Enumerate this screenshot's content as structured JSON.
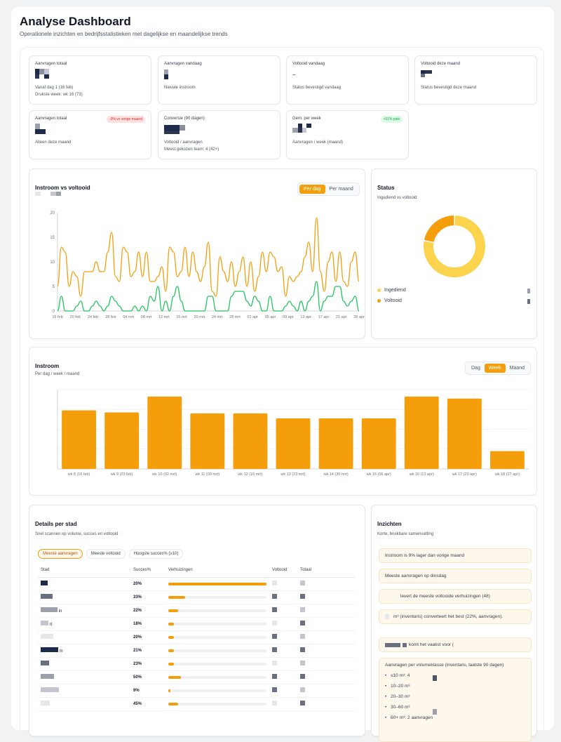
{
  "header": {
    "title": "Analyse Dashboard",
    "subtitle": "Operationele inzichten en bedrijfsstatistieken met dagelijkse en maandelijkse trends"
  },
  "kpis": [
    {
      "label": "Aanvragen totaal",
      "notes": [
        "Vanaf dag 1 (16 feb)",
        "Drukste week: wk 16 (73)"
      ]
    },
    {
      "label": "Aanvragen vandaag",
      "notes": [
        "Nieuwe instroom"
      ]
    },
    {
      "label": "Voltooid vandaag",
      "value": "–",
      "notes": [
        "Status bevestigd vandaag"
      ]
    },
    {
      "label": "Voltooid deze maand",
      "notes": [
        "Status bevestigd deze maand"
      ]
    },
    {
      "label": "Aanvragen totaal",
      "badge": "-9% vs vorige maand",
      "notes": [
        "Alleen deze maand"
      ]
    },
    {
      "label": "Conversie (90 dagen)",
      "notes": [
        "Voltooid / aanvragen",
        "Meest gekozen team: 4 (42×)"
      ]
    },
    {
      "label": "Gem. per week",
      "badge": "+51% piek",
      "notes": [
        "Aanvragen / week (maand)"
      ]
    }
  ],
  "line_section": {
    "title": "Instroom vs voltooid",
    "tabs": [
      "Per dag",
      "Per maand"
    ],
    "active_tab": "Per dag"
  },
  "status_section": {
    "title": "Status",
    "subtitle": "Ingediend vs voltooid",
    "legend": [
      {
        "label": "Ingediend",
        "color": "#fcd34d"
      },
      {
        "label": "Voltooid",
        "color": "#f59e0b"
      }
    ]
  },
  "bar_section": {
    "title": "Instroom",
    "subtitle": "Per dag / week / maand",
    "tabs": [
      "Dag",
      "Week",
      "Maand"
    ],
    "active_tab": "Week"
  },
  "chart_data": [
    {
      "type": "line",
      "ylim": [
        0,
        20
      ],
      "y_ticks": [
        0,
        5,
        10,
        15,
        20
      ],
      "x_tick_labels": [
        "16 feb",
        "20 feb",
        "24 feb",
        "28 feb",
        "04 mrt",
        "08 mrt",
        "12 mrt",
        "16 mrt",
        "20 mrt",
        "24 mrt",
        "28 mrt",
        "01 apr",
        "05 apr",
        "09 apr",
        "13 apr",
        "17 apr",
        "21 apr",
        "28 apr"
      ],
      "series": [
        {
          "color": "#f59e0b",
          "values": [
            5,
            13,
            12,
            5,
            8,
            7,
            3,
            8,
            8,
            8,
            10,
            8,
            8,
            12,
            16,
            7,
            6,
            13,
            12,
            7,
            8,
            12,
            7,
            12,
            6,
            6,
            7,
            9,
            4,
            13,
            12,
            7,
            8,
            13,
            7,
            12,
            8,
            6,
            9,
            14,
            4,
            3,
            11,
            8,
            6,
            10,
            5,
            8,
            11,
            5,
            10,
            4,
            7,
            12,
            8,
            12,
            11,
            8,
            9,
            3,
            7,
            6,
            7,
            8,
            11,
            14,
            8,
            19,
            8,
            4,
            10,
            12,
            6,
            12,
            6,
            5,
            10,
            12,
            6
          ]
        },
        {
          "color": "#22c55e",
          "values": [
            0,
            3,
            0,
            0,
            0,
            1,
            2,
            0,
            0,
            1,
            2,
            1,
            0,
            1,
            3,
            2,
            1,
            0,
            0,
            0,
            1,
            0,
            1,
            0,
            3,
            2,
            5,
            0,
            2,
            0,
            3,
            5,
            2,
            0,
            0,
            0,
            0,
            0,
            0,
            3,
            3,
            0,
            0,
            0,
            0,
            3,
            4,
            4,
            4,
            2,
            1,
            3,
            2,
            0,
            0,
            3,
            0,
            0,
            0,
            1,
            2,
            1,
            0,
            2,
            0,
            2,
            3,
            6,
            0,
            2,
            3,
            3,
            5,
            5,
            2,
            1,
            2,
            3,
            0
          ]
        }
      ]
    },
    {
      "type": "pie",
      "donut": true,
      "slices": [
        {
          "label": "Ingediend",
          "value": 78,
          "color": "#fcd34d"
        },
        {
          "label": "Voltooid",
          "value": 22,
          "color": "#f59e0b"
        }
      ]
    },
    {
      "type": "bar",
      "categories": [
        "wk 8 (16 feb)",
        "wk 9 (23 feb)",
        "wk 10 (02 mrt)",
        "wk 11 (09 mrt)",
        "wk 12 (16 mrt)",
        "wk 13 (23 mrt)",
        "wk 14 (30 mrt)",
        "wk 15 (06 apr)",
        "wk 16 (13 apr)",
        "wk 17 (20 apr)",
        "wk 18 (27 apr)"
      ],
      "values": [
        59,
        57,
        73,
        56,
        56,
        51,
        51,
        51,
        73,
        71,
        18
      ],
      "ylim": [
        0,
        80
      ],
      "color": "#f59e0b"
    }
  ],
  "cities": {
    "title": "Details per stad",
    "subtitle": "Snel scannen op volume, succes en voltooid",
    "chips": [
      "Meeste aanvragen",
      "Meeste voltooid",
      "Hoogste succes% (≥10)"
    ],
    "active_chip": "Meeste aanvragen",
    "columns": [
      "Stad",
      "Succes%",
      "Verhuizingen",
      "Voltooid",
      "Totaal"
    ],
    "rows": [
      {
        "city_suffix": "",
        "success": "20%",
        "bar": 1.0
      },
      {
        "city_suffix": "",
        "success": "33%",
        "bar": 0.17
      },
      {
        "city_suffix": "in",
        "success": "22%",
        "bar": 0.1
      },
      {
        "city_suffix": "rt",
        "success": "18%",
        "bar": 0.06
      },
      {
        "city_suffix": "",
        "success": "20%",
        "bar": 0.06
      },
      {
        "city_suffix": "m",
        "success": "21%",
        "bar": 0.06
      },
      {
        "city_suffix": "",
        "success": "23%",
        "bar": 0.06
      },
      {
        "city_suffix": "",
        "success": "50%",
        "bar": 0.13
      },
      {
        "city_suffix": "",
        "success": "9%",
        "bar": 0.02
      },
      {
        "city_suffix": "",
        "success": "45%",
        "bar": 0.1
      }
    ]
  },
  "insights": {
    "title": "Inzichten",
    "subtitle": "Korte, bruikbare samenvatting",
    "items": [
      "Instroom is 9% lager dan vorige maand",
      "Meeste aanvragen op dinsdag",
      "levert de meeste voltooide verhuizingen (48)",
      "m³ (inventaris) converteert het best (22%, aanvragen).",
      "komt het vaakst voor ("
    ],
    "volume_title": "Aanvragen per volumeklasse (inventaris, laatste 90 dagen)",
    "volume_items": [
      "≤10 m³: 4",
      "10–20 m³",
      "20–30 m³",
      "30–60 m³",
      "60+ m³: 2 aanvragen"
    ]
  }
}
